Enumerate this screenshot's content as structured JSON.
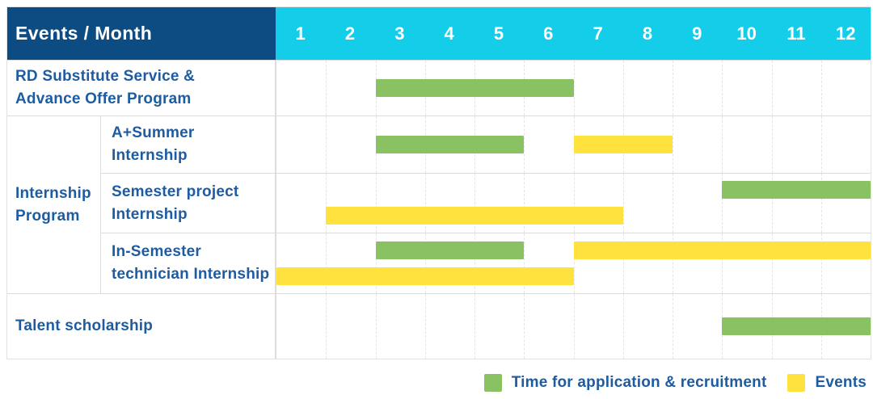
{
  "table": {
    "header": {
      "label": "Events / Month",
      "months": [
        "1",
        "2",
        "3",
        "4",
        "5",
        "6",
        "7",
        "8",
        "9",
        "10",
        "11",
        "12"
      ]
    },
    "group_label_lines": [
      "Internship",
      "Program"
    ],
    "rows": [
      {
        "id": "rd-substitute-advance-offer",
        "label_lines": [
          "RD Substitute Service &",
          "Advance Offer Program"
        ],
        "group": null,
        "bars": [
          {
            "series": "application",
            "start": 3,
            "end": 6,
            "lane": "center"
          }
        ]
      },
      {
        "id": "a-plus-summer-internship",
        "label_lines": [
          "A+Summer",
          "Internship"
        ],
        "group": "Internship Program",
        "bars": [
          {
            "series": "application",
            "start": 3,
            "end": 5,
            "lane": "center"
          },
          {
            "series": "events",
            "start": 7,
            "end": 8,
            "lane": "center"
          }
        ]
      },
      {
        "id": "semester-project-internship",
        "label_lines": [
          "Semester project",
          "Internship"
        ],
        "group": "Internship Program",
        "bars": [
          {
            "series": "application",
            "start": 10,
            "end": 12,
            "lane": "top"
          },
          {
            "series": "events",
            "start": 2,
            "end": 7,
            "lane": "bottom"
          }
        ]
      },
      {
        "id": "in-semester-technician-internship",
        "label_lines": [
          "In-Semester",
          "technician Internship"
        ],
        "group": "Internship Program",
        "bars": [
          {
            "series": "application",
            "start": 3,
            "end": 5,
            "lane": "top"
          },
          {
            "series": "events",
            "start": 7,
            "end": 12,
            "lane": "top"
          },
          {
            "series": "events",
            "start": 1,
            "end": 6,
            "lane": "bottom"
          }
        ]
      },
      {
        "id": "talent-scholarship",
        "label_lines": [
          "Talent scholarship"
        ],
        "group": null,
        "bars": [
          {
            "series": "application",
            "start": 10,
            "end": 12,
            "lane": "center"
          }
        ]
      }
    ]
  },
  "legend": [
    {
      "series": "application",
      "label": "Time for application & recruitment",
      "color": "#8ac263"
    },
    {
      "series": "events",
      "label": "Events",
      "color": "#ffe23e"
    }
  ],
  "colors": {
    "header_bg": "#0d4c82",
    "months_bg": "#14cee9",
    "header_text": "#ffffff",
    "label_text": "#1e5ca2",
    "green_bar": "#8ac263",
    "yellow_bar": "#ffe23e",
    "grid_line": "#e4e4e4",
    "row_border": "#dcdcdc"
  },
  "chart_data": {
    "type": "bar",
    "variant": "gantt",
    "title": "Events / Month",
    "xlabel": "Month",
    "x": {
      "ticks": [
        1,
        2,
        3,
        4,
        5,
        6,
        7,
        8,
        9,
        10,
        11,
        12
      ],
      "range": [
        1,
        12
      ]
    },
    "grid": "vertical-dashed",
    "legend_position": "bottom-right",
    "series": [
      {
        "name": "Time for application & recruitment",
        "color": "#8ac263"
      },
      {
        "name": "Events",
        "color": "#ffe23e"
      }
    ],
    "rows": [
      {
        "event": "RD Substitute Service & Advance Offer Program",
        "group": null,
        "spans": [
          {
            "series": "Time for application & recruitment",
            "months": [
              3,
              6
            ]
          }
        ]
      },
      {
        "event": "A+Summer Internship",
        "group": "Internship Program",
        "spans": [
          {
            "series": "Time for application & recruitment",
            "months": [
              3,
              5
            ]
          },
          {
            "series": "Events",
            "months": [
              7,
              8
            ]
          }
        ]
      },
      {
        "event": "Semester project Internship",
        "group": "Internship Program",
        "spans": [
          {
            "series": "Time for application & recruitment",
            "months": [
              10,
              12
            ]
          },
          {
            "series": "Events",
            "months": [
              2,
              7
            ]
          }
        ]
      },
      {
        "event": "In-Semester technician Internship",
        "group": "Internship Program",
        "spans": [
          {
            "series": "Time for application & recruitment",
            "months": [
              3,
              5
            ]
          },
          {
            "series": "Events",
            "months": [
              7,
              12
            ]
          },
          {
            "series": "Events",
            "months": [
              1,
              6
            ]
          }
        ]
      },
      {
        "event": "Talent scholarship",
        "group": null,
        "spans": [
          {
            "series": "Time for application & recruitment",
            "months": [
              10,
              12
            ]
          }
        ]
      }
    ]
  }
}
